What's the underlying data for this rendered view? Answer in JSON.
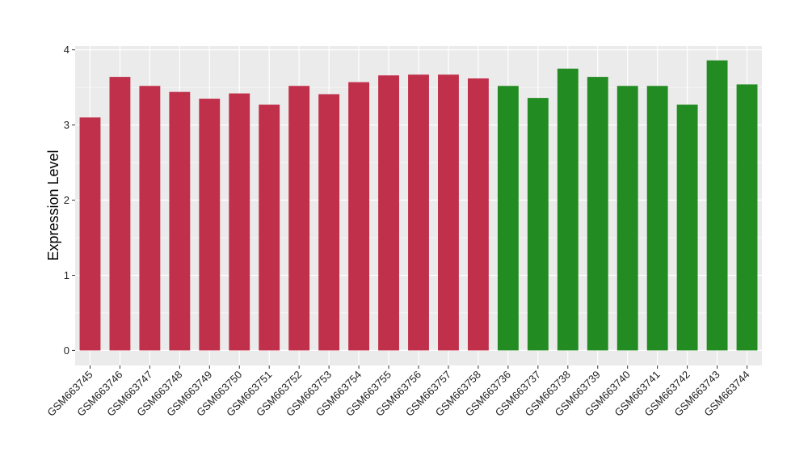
{
  "chart_data": {
    "type": "bar",
    "title": "",
    "xlabel": "",
    "ylabel": "Expression Level",
    "ylim": [
      -0.2,
      4.05
    ],
    "yticks": [
      0,
      1,
      2,
      3,
      4
    ],
    "grid": true,
    "legend": "none",
    "colors": {
      "group1": "#c1304b",
      "group2": "#228b22",
      "panel": "#ebebeb",
      "gridline": "#ffffff"
    },
    "categories": [
      "GSM663745",
      "GSM663746",
      "GSM663747",
      "GSM663748",
      "GSM663749",
      "GSM663750",
      "GSM663751",
      "GSM663752",
      "GSM663753",
      "GSM663754",
      "GSM663755",
      "GSM663756",
      "GSM663757",
      "GSM663758",
      "GSM663736",
      "GSM663737",
      "GSM663738",
      "GSM663739",
      "GSM663740",
      "GSM663741",
      "GSM663742",
      "GSM663743",
      "GSM663744"
    ],
    "values": [
      3.1,
      3.64,
      3.52,
      3.44,
      3.35,
      3.42,
      3.27,
      3.52,
      3.41,
      3.57,
      3.66,
      3.67,
      3.67,
      3.62,
      3.52,
      3.36,
      3.75,
      3.64,
      3.52,
      3.52,
      3.27,
      3.86,
      3.54
    ],
    "groups": [
      "group1",
      "group1",
      "group1",
      "group1",
      "group1",
      "group1",
      "group1",
      "group1",
      "group1",
      "group1",
      "group1",
      "group1",
      "group1",
      "group1",
      "group2",
      "group2",
      "group2",
      "group2",
      "group2",
      "group2",
      "group2",
      "group2",
      "group2"
    ]
  }
}
